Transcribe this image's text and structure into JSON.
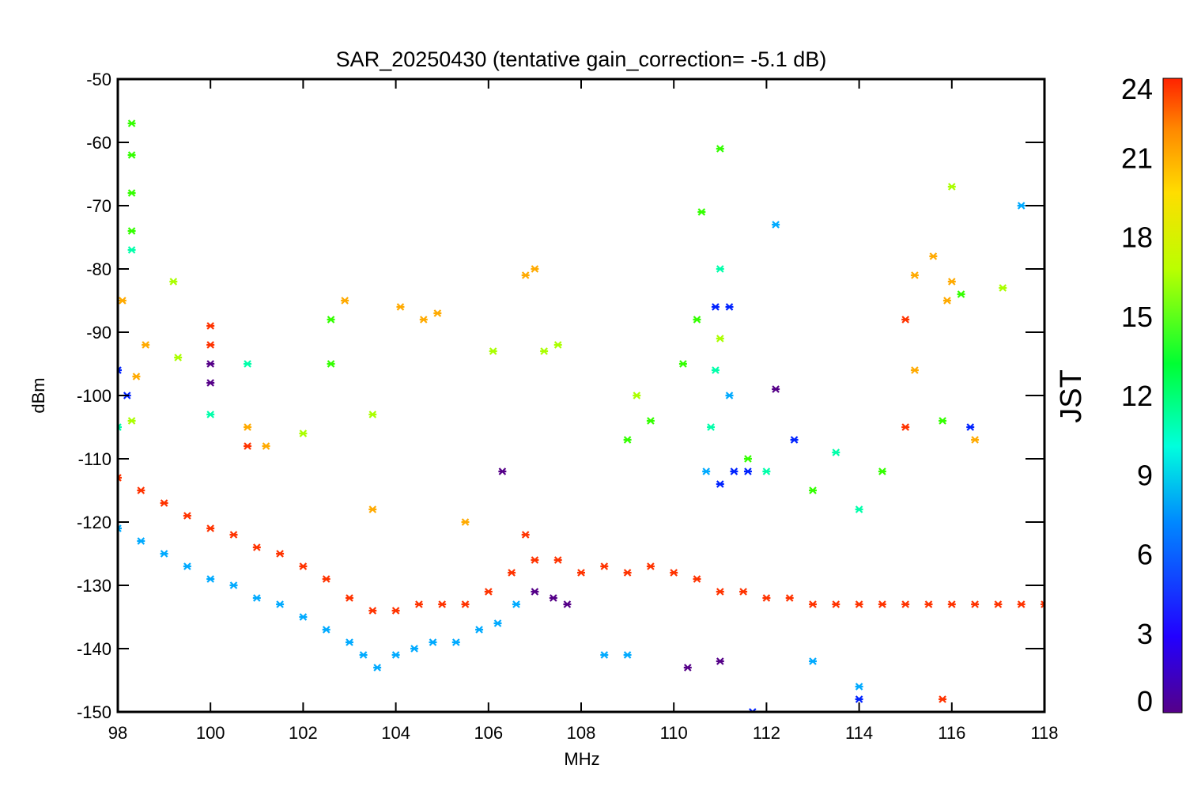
{
  "chart_data": {
    "type": "scatter",
    "title": "SAR_20250430 (tentative gain_correction= -5.1 dB)",
    "xlabel": "MHz",
    "ylabel": "dBm",
    "xlim": [
      98,
      118
    ],
    "ylim": [
      -150,
      -50
    ],
    "xticks": [
      "98",
      "100",
      "102",
      "104",
      "106",
      "108",
      "110",
      "112",
      "114",
      "116",
      "118"
    ],
    "yticks": [
      "-50",
      "-60",
      "-70",
      "-80",
      "-90",
      "-100",
      "-110",
      "-120",
      "-130",
      "-140",
      "-150"
    ],
    "grid": false,
    "marker": "asterisk",
    "color_by": "JST",
    "colorbar": {
      "label": "JST",
      "range": [
        0,
        24
      ],
      "ticks": [
        "0",
        "3",
        "6",
        "9",
        "12",
        "15",
        "18",
        "21",
        "24"
      ],
      "colormap": "rainbow"
    },
    "series": [
      {
        "jst": 23,
        "color": "#ff3300",
        "points": [
          [
            98.0,
            -113
          ],
          [
            98.5,
            -115
          ],
          [
            99.0,
            -117
          ],
          [
            99.5,
            -119
          ],
          [
            100.0,
            -121
          ],
          [
            100.5,
            -122
          ],
          [
            101.0,
            -124
          ],
          [
            101.5,
            -125
          ],
          [
            102.0,
            -127
          ],
          [
            102.5,
            -129
          ],
          [
            103.0,
            -132
          ],
          [
            103.5,
            -134
          ],
          [
            104.0,
            -134
          ],
          [
            104.5,
            -133
          ],
          [
            105.0,
            -133
          ],
          [
            105.5,
            -133
          ],
          [
            106.0,
            -131
          ],
          [
            106.5,
            -128
          ],
          [
            106.8,
            -122
          ],
          [
            107.0,
            -126
          ],
          [
            107.5,
            -126
          ],
          [
            108.0,
            -128
          ],
          [
            108.5,
            -127
          ],
          [
            109.0,
            -128
          ],
          [
            109.5,
            -127
          ],
          [
            110.0,
            -128
          ],
          [
            110.5,
            -129
          ],
          [
            111.0,
            -131
          ],
          [
            111.5,
            -131
          ],
          [
            112.0,
            -132
          ],
          [
            112.5,
            -132
          ],
          [
            113.0,
            -133
          ],
          [
            113.5,
            -133
          ],
          [
            114.0,
            -133
          ],
          [
            114.5,
            -133
          ],
          [
            115.0,
            -133
          ],
          [
            115.5,
            -133
          ],
          [
            116.0,
            -133
          ],
          [
            116.5,
            -133
          ],
          [
            117.0,
            -133
          ],
          [
            117.5,
            -133
          ],
          [
            118.0,
            -133
          ],
          [
            100.0,
            -89
          ],
          [
            100.0,
            -92
          ],
          [
            100.8,
            -108
          ],
          [
            115.0,
            -105
          ],
          [
            115.8,
            -148
          ],
          [
            115.0,
            -88
          ]
        ]
      },
      {
        "jst": 20,
        "color": "#ffaa00",
        "points": [
          [
            98.1,
            -85
          ],
          [
            98.4,
            -97
          ],
          [
            98.6,
            -92
          ],
          [
            100.8,
            -105
          ],
          [
            101.2,
            -108
          ],
          [
            102.9,
            -85
          ],
          [
            104.1,
            -86
          ],
          [
            104.6,
            -88
          ],
          [
            104.9,
            -87
          ],
          [
            106.8,
            -81
          ],
          [
            107.0,
            -80
          ],
          [
            115.2,
            -81
          ],
          [
            115.6,
            -78
          ],
          [
            115.9,
            -85
          ],
          [
            116.0,
            -82
          ],
          [
            115.2,
            -96
          ],
          [
            116.5,
            -107
          ],
          [
            103.5,
            -118
          ],
          [
            105.5,
            -120
          ]
        ]
      },
      {
        "jst": 17,
        "color": "#aaff00",
        "points": [
          [
            99.2,
            -82
          ],
          [
            99.3,
            -94
          ],
          [
            98.3,
            -104
          ],
          [
            102.0,
            -106
          ],
          [
            103.5,
            -103
          ],
          [
            106.1,
            -93
          ],
          [
            107.2,
            -93
          ],
          [
            107.5,
            -92
          ],
          [
            116.0,
            -67
          ],
          [
            117.1,
            -83
          ],
          [
            111.0,
            -91
          ],
          [
            109.2,
            -100
          ]
        ]
      },
      {
        "jst": 15,
        "color": "#33ff00",
        "points": [
          [
            98.3,
            -57
          ],
          [
            98.3,
            -62
          ],
          [
            98.3,
            -68
          ],
          [
            98.3,
            -74
          ],
          [
            102.6,
            -88
          ],
          [
            102.6,
            -95
          ],
          [
            110.6,
            -71
          ],
          [
            111.0,
            -61
          ],
          [
            110.2,
            -95
          ],
          [
            110.5,
            -88
          ],
          [
            109.5,
            -104
          ],
          [
            109.0,
            -107
          ],
          [
            113.0,
            -115
          ],
          [
            114.5,
            -112
          ],
          [
            115.8,
            -104
          ],
          [
            116.2,
            -84
          ],
          [
            111.6,
            -110
          ]
        ]
      },
      {
        "jst": 11,
        "color": "#00ffaa",
        "points": [
          [
            98.3,
            -77
          ],
          [
            98.0,
            -105
          ],
          [
            100.0,
            -103
          ],
          [
            100.8,
            -95
          ],
          [
            110.9,
            -96
          ],
          [
            110.8,
            -105
          ],
          [
            112.0,
            -112
          ],
          [
            113.5,
            -109
          ],
          [
            114.0,
            -118
          ],
          [
            111.0,
            -80
          ]
        ]
      },
      {
        "jst": 8,
        "color": "#00aaff",
        "points": [
          [
            98.0,
            -121
          ],
          [
            98.5,
            -123
          ],
          [
            99.0,
            -125
          ],
          [
            99.5,
            -127
          ],
          [
            100.0,
            -129
          ],
          [
            100.5,
            -130
          ],
          [
            101.0,
            -132
          ],
          [
            101.5,
            -133
          ],
          [
            102.0,
            -135
          ],
          [
            102.5,
            -137
          ],
          [
            103.0,
            -139
          ],
          [
            103.3,
            -141
          ],
          [
            103.6,
            -143
          ],
          [
            104.0,
            -141
          ],
          [
            104.4,
            -140
          ],
          [
            104.8,
            -139
          ],
          [
            105.3,
            -139
          ],
          [
            105.8,
            -137
          ],
          [
            106.2,
            -136
          ],
          [
            106.6,
            -133
          ],
          [
            112.2,
            -73
          ],
          [
            117.5,
            -70
          ],
          [
            111.2,
            -100
          ],
          [
            110.7,
            -112
          ],
          [
            108.5,
            -141
          ],
          [
            109.0,
            -141
          ],
          [
            113.0,
            -142
          ],
          [
            114.0,
            -146
          ]
        ]
      },
      {
        "jst": 4,
        "color": "#0022ff",
        "points": [
          [
            111.0,
            -114
          ],
          [
            111.3,
            -112
          ],
          [
            111.6,
            -112
          ],
          [
            110.9,
            -86
          ],
          [
            111.2,
            -86
          ],
          [
            112.6,
            -107
          ],
          [
            116.4,
            -105
          ],
          [
            98.0,
            -96
          ],
          [
            98.2,
            -100
          ],
          [
            111.7,
            -150
          ],
          [
            114.0,
            -148
          ]
        ]
      },
      {
        "jst": 1,
        "color": "#550088",
        "points": [
          [
            100.0,
            -95
          ],
          [
            100.0,
            -98
          ],
          [
            107.0,
            -131
          ],
          [
            107.4,
            -132
          ],
          [
            107.7,
            -133
          ],
          [
            112.2,
            -99
          ],
          [
            106.3,
            -112
          ],
          [
            110.3,
            -143
          ],
          [
            111.0,
            -142
          ]
        ]
      }
    ]
  }
}
